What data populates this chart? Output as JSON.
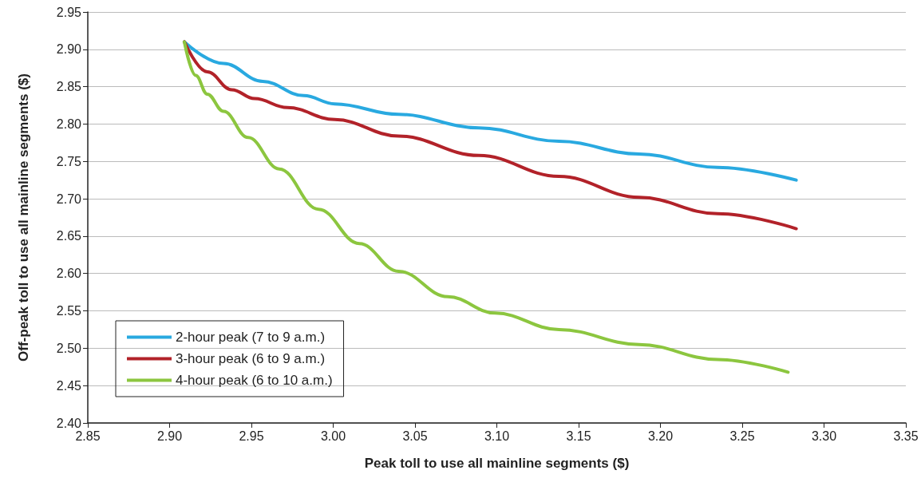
{
  "chart_data": {
    "type": "line",
    "xlabel": "Peak toll to use all mainline segments ($)",
    "ylabel": "Off-peak toll to use all mainline segments ($)",
    "xlim": [
      2.85,
      3.35
    ],
    "xticks": [
      {
        "value": 2.85,
        "label": "2.85"
      },
      {
        "value": 2.9,
        "label": "2.90"
      },
      {
        "value": 2.95,
        "label": "2.95"
      },
      {
        "value": 3,
        "label": "3.00"
      },
      {
        "value": 3.05,
        "label": "3.05"
      },
      {
        "value": 3.1,
        "label": "3.10"
      },
      {
        "value": 3.15,
        "label": "3.15"
      },
      {
        "value": 3.2,
        "label": "3.20"
      },
      {
        "value": 3.25,
        "label": "3.25"
      },
      {
        "value": 3.3,
        "label": "3.30"
      },
      {
        "value": 3.35,
        "label": "3.35"
      }
    ],
    "ylim": [
      2.4,
      2.95
    ],
    "yticks": [
      {
        "value": 2.4,
        "label": "2.40"
      },
      {
        "value": 2.45,
        "label": "2.45"
      },
      {
        "value": 2.5,
        "label": "2.50"
      },
      {
        "value": 2.55,
        "label": "2.55"
      },
      {
        "value": 2.6,
        "label": "2.60"
      },
      {
        "value": 2.65,
        "label": "2.65"
      },
      {
        "value": 2.7,
        "label": "2.70"
      },
      {
        "value": 2.75,
        "label": "2.75"
      },
      {
        "value": 2.8,
        "label": "2.80"
      },
      {
        "value": 2.85,
        "label": "2.85"
      },
      {
        "value": 2.9,
        "label": "2.90"
      },
      {
        "value": 2.95,
        "label": "2.95"
      }
    ],
    "grid": "y",
    "legend": "bottom left",
    "marker": "none",
    "line_style": "solid",
    "series": [
      {
        "name": "2-hour peak (7 to 9 a.m.)",
        "color": "#29a9e0",
        "x": [
          2.909,
          2.933,
          2.957,
          2.982,
          3.001,
          3.04,
          3.089,
          3.138,
          3.187,
          3.235,
          3.283
        ],
        "values": [
          2.91,
          2.881,
          2.857,
          2.838,
          2.827,
          2.813,
          2.795,
          2.777,
          2.76,
          2.742,
          2.725
        ]
      },
      {
        "name": "3-hour peak (6 to 9 a.m.)",
        "color": "#b22229",
        "x": [
          2.909,
          2.923,
          2.938,
          2.952,
          2.972,
          3.001,
          3.04,
          3.089,
          3.138,
          3.187,
          3.235,
          3.283
        ],
        "values": [
          2.91,
          2.87,
          2.846,
          2.834,
          2.822,
          2.806,
          2.784,
          2.758,
          2.73,
          2.702,
          2.68,
          2.66
        ]
      },
      {
        "name": "4-hour peak (6 to 10 a.m.)",
        "color": "#8cc63f",
        "x": [
          2.909,
          2.916,
          2.923,
          2.933,
          2.948,
          2.967,
          2.991,
          3.016,
          3.04,
          3.07,
          3.099,
          3.138,
          3.187,
          3.235,
          3.278
        ],
        "values": [
          2.91,
          2.865,
          2.84,
          2.817,
          2.782,
          2.74,
          2.686,
          2.64,
          2.603,
          2.569,
          2.547,
          2.525,
          2.505,
          2.485,
          2.468
        ]
      }
    ]
  }
}
